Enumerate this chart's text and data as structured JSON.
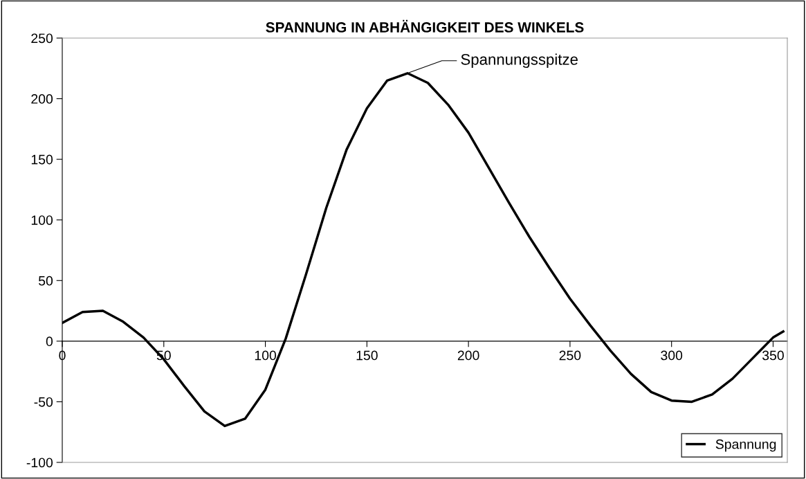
{
  "chart_data": {
    "type": "line",
    "title": "SPANNUNG IN ABHÄNGIGKEIT DES WINKELS",
    "x": [
      0,
      10,
      20,
      30,
      40,
      50,
      60,
      70,
      80,
      90,
      100,
      110,
      120,
      130,
      140,
      150,
      160,
      170,
      180,
      190,
      200,
      210,
      220,
      230,
      240,
      250,
      260,
      270,
      280,
      290,
      300,
      310,
      320,
      330,
      340,
      350,
      355
    ],
    "series": [
      {
        "name": "Spannung",
        "color": "#000000",
        "values": [
          15,
          24,
          25,
          16,
          3,
          -15,
          -37,
          -58,
          -70,
          -64,
          -40,
          2,
          55,
          110,
          158,
          192,
          215,
          221,
          213,
          195,
          172,
          143,
          114,
          86,
          60,
          35,
          13,
          -8,
          -27,
          -42,
          -49,
          -50,
          -44,
          -31,
          -14,
          3,
          8
        ]
      }
    ],
    "xlim": [
      0,
      357
    ],
    "xticks": [
      0,
      50,
      100,
      150,
      200,
      250,
      300,
      350
    ],
    "ylim": [
      -100,
      250
    ],
    "yticks": [
      -100,
      -50,
      0,
      50,
      100,
      150,
      200,
      250
    ],
    "annotations": [
      {
        "text": "Spannungsspitze",
        "x": 170,
        "y": 221
      }
    ],
    "grid": false,
    "legend": "bottom right",
    "marker": "none",
    "line_style": "solid"
  }
}
